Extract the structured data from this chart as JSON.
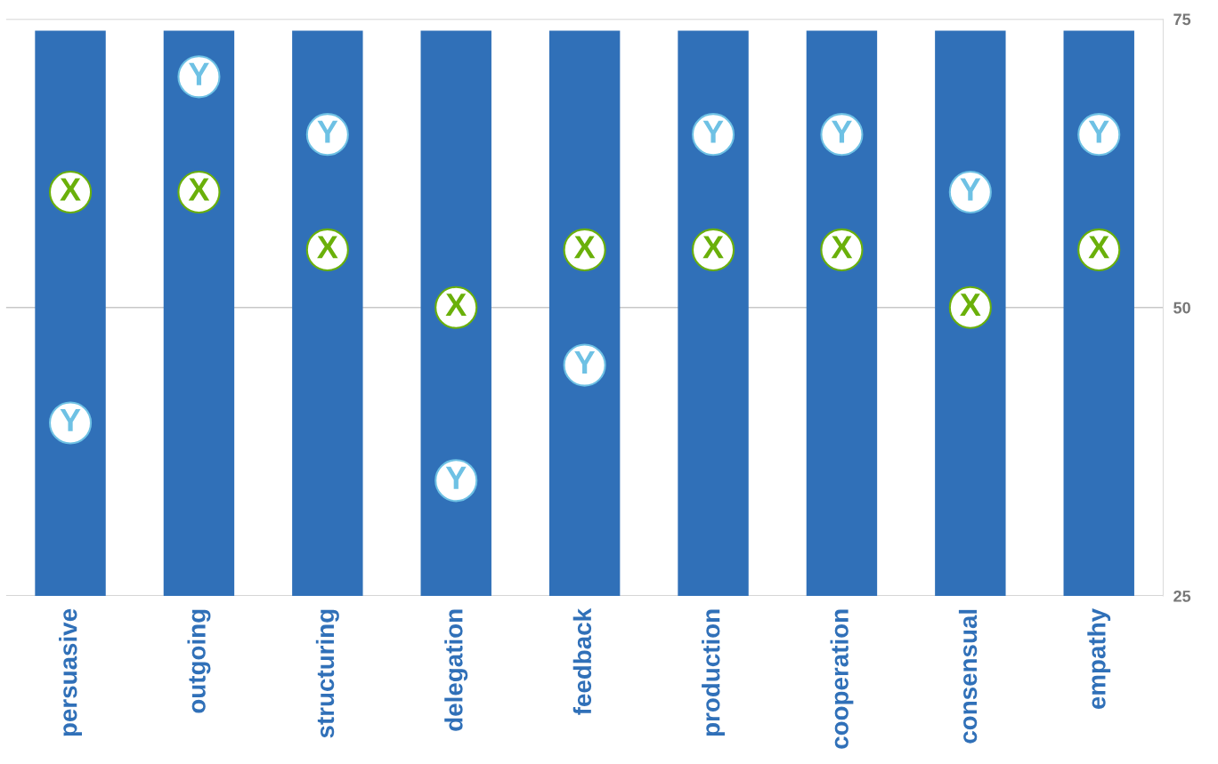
{
  "chart_data": {
    "type": "bar",
    "categories": [
      "persuasive",
      "outgoing",
      "structuring",
      "delegation",
      "feedback",
      "production",
      "cooperation",
      "consensual",
      "empathy"
    ],
    "series": [
      {
        "color": "#3070b8",
        "values": [
          74,
          74,
          74,
          74,
          74,
          74,
          74,
          74,
          74
        ]
      },
      {
        "type": "scatter",
        "name": "X",
        "color": "#6ab00a",
        "values": [
          60,
          60,
          55,
          50,
          55,
          55,
          55,
          50,
          55
        ]
      },
      {
        "type": "scatter",
        "name": "Y",
        "color": "#6ec1e4",
        "values": [
          40,
          70,
          65,
          35,
          45,
          65,
          65,
          60,
          65
        ]
      }
    ],
    "ylim": [
      25,
      75
    ],
    "yticks": [
      25,
      50,
      75
    ],
    "grid": "y",
    "marker": "circle",
    "legend": false
  }
}
